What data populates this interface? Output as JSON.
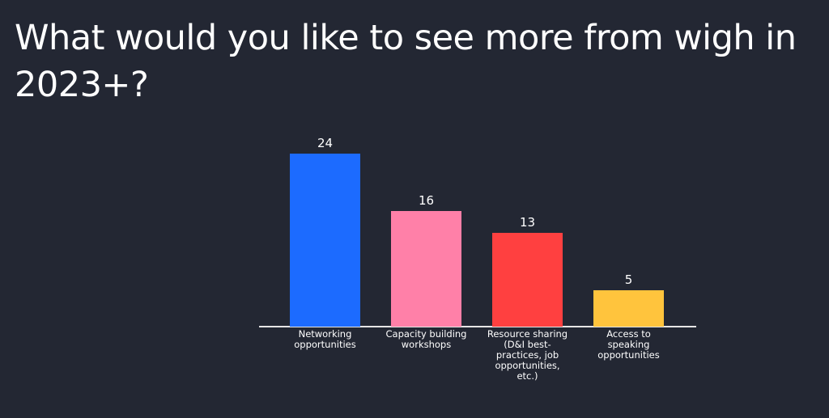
{
  "chart_data": {
    "type": "bar",
    "title": "What would you like to see more from wigh in 2023+?",
    "categories": [
      "Networking opportunities",
      "Capacity building workshops",
      "Resource sharing (D&I best-practices, job opportunities, etc.)",
      "Access to speaking opportunities"
    ],
    "values": [
      24,
      16,
      13,
      5
    ],
    "colors": [
      "#1c6bff",
      "#ff80a8",
      "#ff4040",
      "#ffc43d"
    ]
  }
}
